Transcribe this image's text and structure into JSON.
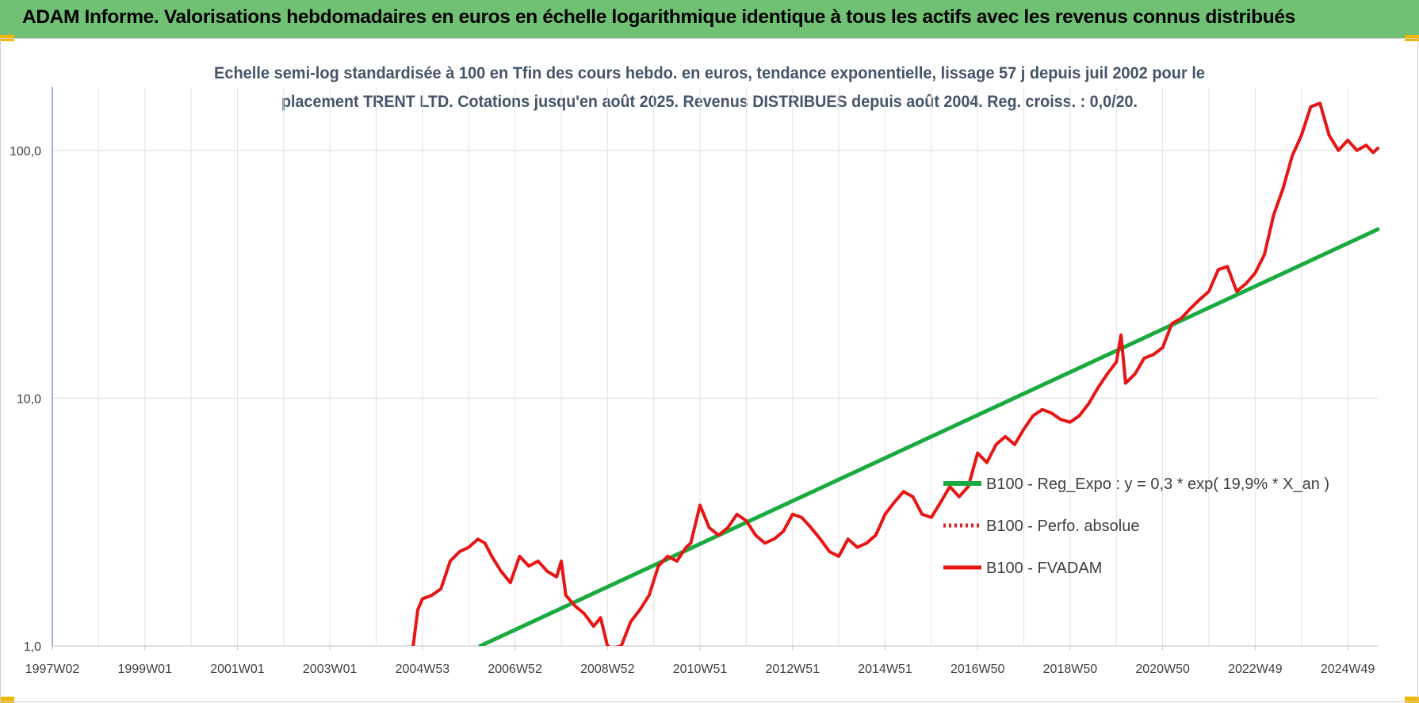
{
  "header": {
    "title": "ADAM Informe. Valorisations hebdomadaires en euros en échelle logarithmique identique à tous les actifs avec les revenus connus distribués"
  },
  "chart_data": {
    "type": "line",
    "title_line1": "Echelle semi-log standardisée à 100 en Tfin des cours hebdo. en euros, tendance exponentielle, lissage 57 j depuis juil 2002 pour le",
    "title_line2": "placement TRENT LTD. Cotations jusqu'en août 2025.  Revenus DISTRIBUES depuis août 2004. Reg. croiss. : 0,0/20.",
    "y_scale": "log",
    "ylim": [
      1,
      180
    ],
    "y_ticks": [
      {
        "value": 1,
        "label": "1,0"
      },
      {
        "value": 10,
        "label": "10,0"
      },
      {
        "value": 100,
        "label": "100,0"
      }
    ],
    "x_range": [
      1997.0,
      2025.65
    ],
    "x_ticks": [
      {
        "x": 1997.0,
        "label": "1997W02"
      },
      {
        "x": 1999.0,
        "label": "1999W01"
      },
      {
        "x": 2001.0,
        "label": "2001W01"
      },
      {
        "x": 2003.0,
        "label": "2003W01"
      },
      {
        "x": 2005.0,
        "label": "2004W53"
      },
      {
        "x": 2007.0,
        "label": "2006W52"
      },
      {
        "x": 2009.0,
        "label": "2008W52"
      },
      {
        "x": 2011.0,
        "label": "2010W51"
      },
      {
        "x": 2013.0,
        "label": "2012W51"
      },
      {
        "x": 2015.0,
        "label": "2014W51"
      },
      {
        "x": 2017.0,
        "label": "2016W50"
      },
      {
        "x": 2019.0,
        "label": "2018W50"
      },
      {
        "x": 2021.0,
        "label": "2020W50"
      },
      {
        "x": 2023.0,
        "label": "2022W49"
      },
      {
        "x": 2025.0,
        "label": "2024W49"
      }
    ],
    "grid": true,
    "legend_position": "center-right",
    "series": [
      {
        "name": "B100 - Reg_Expo : y = 0,3 * exp( 19,9% *  X_an )",
        "color": "#1aab40",
        "style": "solid",
        "x": [
          2006.25,
          2025.65
        ],
        "y": [
          1.0,
          48.0
        ]
      },
      {
        "name": "B100 - Perfo. absolue",
        "color": "#e32020",
        "style": "dotted",
        "x": [],
        "y": []
      },
      {
        "name": "B100 - FVADAM",
        "color": "#e81515",
        "style": "solid",
        "x": [
          2004.75,
          2004.8,
          2004.9,
          2005.0,
          2005.2,
          2005.4,
          2005.6,
          2005.8,
          2006.0,
          2006.2,
          2006.35,
          2006.5,
          2006.7,
          2006.9,
          2007.1,
          2007.3,
          2007.5,
          2007.7,
          2007.9,
          2008.0,
          2008.1,
          2008.3,
          2008.5,
          2008.7,
          2008.85,
          2009.0,
          2009.1,
          2009.3,
          2009.5,
          2009.7,
          2009.9,
          2010.1,
          2010.3,
          2010.5,
          2010.7,
          2010.8,
          2011.0,
          2011.2,
          2011.4,
          2011.6,
          2011.8,
          2012.0,
          2012.2,
          2012.4,
          2012.6,
          2012.8,
          2013.0,
          2013.2,
          2013.4,
          2013.6,
          2013.8,
          2014.0,
          2014.2,
          2014.4,
          2014.6,
          2014.8,
          2015.0,
          2015.2,
          2015.4,
          2015.6,
          2015.8,
          2016.0,
          2016.2,
          2016.4,
          2016.6,
          2016.8,
          2017.0,
          2017.2,
          2017.4,
          2017.6,
          2017.8,
          2018.0,
          2018.2,
          2018.4,
          2018.6,
          2018.8,
          2019.0,
          2019.2,
          2019.4,
          2019.6,
          2019.8,
          2020.0,
          2020.1,
          2020.2,
          2020.4,
          2020.6,
          2020.8,
          2021.0,
          2021.2,
          2021.4,
          2021.6,
          2021.8,
          2022.0,
          2022.2,
          2022.4,
          2022.6,
          2022.8,
          2023.0,
          2023.2,
          2023.4,
          2023.6,
          2023.8,
          2024.0,
          2024.2,
          2024.4,
          2024.6,
          2024.8,
          2025.0,
          2025.2,
          2025.4,
          2025.55,
          2025.65
        ],
        "y": [
          0.98,
          1.0,
          1.4,
          1.55,
          1.6,
          1.7,
          2.2,
          2.4,
          2.5,
          2.7,
          2.6,
          2.3,
          2.0,
          1.8,
          2.3,
          2.1,
          2.2,
          2.0,
          1.9,
          2.2,
          1.6,
          1.45,
          1.35,
          1.2,
          1.3,
          1.0,
          0.98,
          1.0,
          1.25,
          1.4,
          1.6,
          2.1,
          2.3,
          2.2,
          2.5,
          2.6,
          3.7,
          3.0,
          2.8,
          3.0,
          3.4,
          3.2,
          2.8,
          2.6,
          2.7,
          2.9,
          3.4,
          3.3,
          3.0,
          2.7,
          2.4,
          2.3,
          2.7,
          2.5,
          2.6,
          2.8,
          3.4,
          3.8,
          4.2,
          4.0,
          3.4,
          3.3,
          3.8,
          4.4,
          4.0,
          4.4,
          6.0,
          5.5,
          6.5,
          7.0,
          6.5,
          7.5,
          8.5,
          9.0,
          8.7,
          8.2,
          8.0,
          8.5,
          9.5,
          11.0,
          12.5,
          14.0,
          18.0,
          11.5,
          12.5,
          14.5,
          15.0,
          16.0,
          20.0,
          21.0,
          23.0,
          25.0,
          27.0,
          33.0,
          34.0,
          27.0,
          29.0,
          32.0,
          38.0,
          55.0,
          70.0,
          95.0,
          115.0,
          150.0,
          155.0,
          115.0,
          100.0,
          110.0,
          100.0,
          105.0,
          98.0,
          102.0
        ]
      }
    ]
  }
}
